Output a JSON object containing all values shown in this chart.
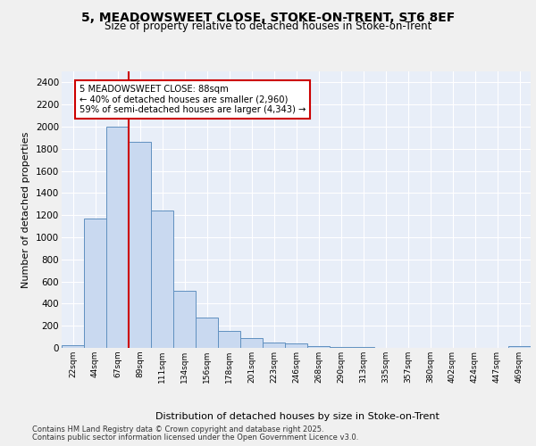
{
  "title1": "5, MEADOWSWEET CLOSE, STOKE-ON-TRENT, ST6 8EF",
  "title2": "Size of property relative to detached houses in Stoke-on-Trent",
  "xlabel": "Distribution of detached houses by size in Stoke-on-Trent",
  "ylabel": "Number of detached properties",
  "bins": [
    "22sqm",
    "44sqm",
    "67sqm",
    "89sqm",
    "111sqm",
    "134sqm",
    "156sqm",
    "178sqm",
    "201sqm",
    "223sqm",
    "246sqm",
    "268sqm",
    "290sqm",
    "313sqm",
    "335sqm",
    "357sqm",
    "380sqm",
    "402sqm",
    "424sqm",
    "447sqm",
    "469sqm"
  ],
  "values": [
    25,
    1170,
    2000,
    1860,
    1245,
    520,
    275,
    150,
    90,
    45,
    40,
    18,
    10,
    5,
    3,
    2,
    2,
    1,
    1,
    1,
    15
  ],
  "bar_color": "#c9d9f0",
  "bar_edge_color": "#6090c0",
  "vline_bin_index": 3,
  "vline_color": "#cc0000",
  "annotation_text": "5 MEADOWSWEET CLOSE: 88sqm\n← 40% of detached houses are smaller (2,960)\n59% of semi-detached houses are larger (4,343) →",
  "annotation_box_color": "#ffffff",
  "annotation_box_edge": "#cc0000",
  "ylim": [
    0,
    2500
  ],
  "yticks": [
    0,
    200,
    400,
    600,
    800,
    1000,
    1200,
    1400,
    1600,
    1800,
    2000,
    2200,
    2400
  ],
  "fig_bg_color": "#f0f0f0",
  "plot_bg_color": "#e8eef8",
  "footer1": "Contains HM Land Registry data © Crown copyright and database right 2025.",
  "footer2": "Contains public sector information licensed under the Open Government Licence v3.0."
}
